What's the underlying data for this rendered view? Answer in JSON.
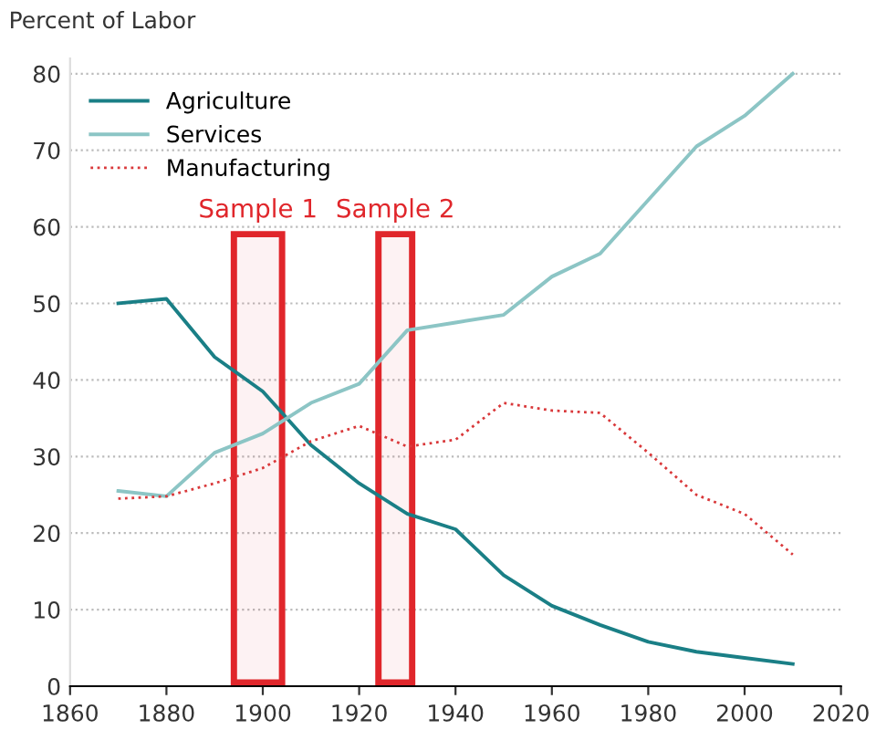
{
  "chart_data": {
    "type": "line",
    "ylabel": "Percent of Labor",
    "x": [
      1870,
      1880,
      1890,
      1900,
      1910,
      1920,
      1930,
      1940,
      1950,
      1960,
      1970,
      1980,
      1990,
      2000,
      2010
    ],
    "series": [
      {
        "name": "Agriculture",
        "color": "#1a7f86",
        "line_style": "solid",
        "values": [
          50,
          50.6,
          43,
          38.5,
          31.5,
          26.5,
          22.5,
          20.5,
          14.5,
          10.5,
          8,
          5.8,
          4.5,
          3.7,
          2.9
        ]
      },
      {
        "name": "Services",
        "color": "#8cc5c5",
        "line_style": "solid",
        "values": [
          25.5,
          24.8,
          30.5,
          33,
          37,
          39.5,
          46.5,
          47.5,
          48.5,
          53.5,
          56.5,
          63.5,
          70.5,
          74.5,
          80
        ]
      },
      {
        "name": "Manufacturing",
        "color": "#d9383a",
        "line_style": "dotted",
        "values": [
          24.5,
          24.8,
          26.5,
          28.5,
          32,
          34,
          31.3,
          32.2,
          37,
          36,
          35.7,
          30.5,
          25,
          22.5,
          17.2
        ]
      }
    ],
    "bands": [
      {
        "axis": "x",
        "from": 1894,
        "to": 1904,
        "label": "Sample 1",
        "color": "#e0262b"
      },
      {
        "axis": "x",
        "from": 1924,
        "to": 1931,
        "label": "Sample 2",
        "color": "#e0262b"
      }
    ],
    "xlim": [
      1860,
      2020
    ],
    "xticks": [
      1860,
      1880,
      1900,
      1920,
      1940,
      1960,
      1980,
      2000,
      2020
    ],
    "ylim": [
      0,
      82
    ],
    "yticks": [
      0,
      10,
      20,
      30,
      40,
      50,
      60,
      70,
      80
    ],
    "grid": "y",
    "legend": "top left",
    "marker": "none"
  }
}
